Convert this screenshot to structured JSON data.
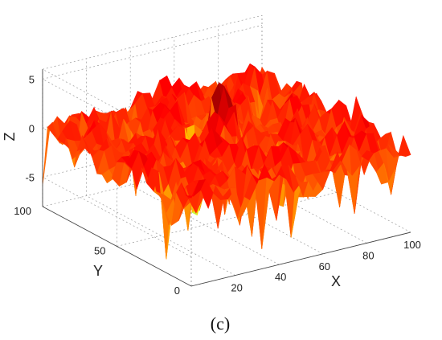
{
  "chart_data": {
    "type": "surface3d",
    "title": "",
    "panel_label": "(c)",
    "xlabel": "X",
    "ylabel": "Y",
    "zlabel": "Z",
    "xlim": [
      0,
      100
    ],
    "ylim": [
      0,
      100
    ],
    "zlim": [
      -8,
      6
    ],
    "x_ticks": [
      20,
      40,
      60,
      80,
      100
    ],
    "y_ticks": [
      0,
      50,
      100
    ],
    "z_ticks": [
      -5,
      0,
      5
    ],
    "grid": true,
    "colormap": "jet",
    "surface_summary": {
      "dominant_level": 0,
      "max_peak_z": 5,
      "deep_spike_z": -8,
      "deep_spike_xy": [
        45,
        60
      ]
    }
  }
}
